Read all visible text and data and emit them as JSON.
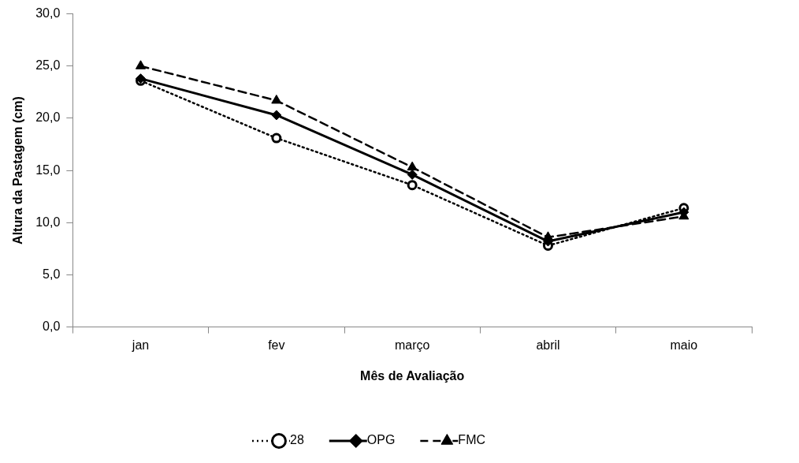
{
  "chart_data": {
    "type": "line",
    "xlabel": "Mês de Avaliação",
    "ylabel": "Altura da Pastagem (cm)",
    "categories": [
      "jan",
      "fev",
      "março",
      "abril",
      "maio"
    ],
    "series": [
      {
        "name": "28",
        "color": "#000000",
        "marker": "circle",
        "line_style": "dotted",
        "values": [
          23.6,
          18.1,
          13.6,
          7.8,
          11.4
        ]
      },
      {
        "name": "OPG",
        "color": "#000000",
        "marker": "diamond",
        "line_style": "solid",
        "values": [
          23.8,
          20.3,
          14.6,
          8.2,
          11.0
        ]
      },
      {
        "name": "FMC",
        "color": "#000000",
        "marker": "triangle",
        "line_style": "dashed",
        "values": [
          25.0,
          21.7,
          15.3,
          8.6,
          10.6
        ]
      }
    ],
    "ylim": [
      0,
      30
    ],
    "yticks": [
      {
        "value": 0,
        "label": "0,0"
      },
      {
        "value": 5,
        "label": "5,0"
      },
      {
        "value": 10,
        "label": "10,0"
      },
      {
        "value": 15,
        "label": "15,0"
      },
      {
        "value": 20,
        "label": "20,0"
      },
      {
        "value": 25,
        "label": "25,0"
      },
      {
        "value": 30,
        "label": "30,0"
      }
    ],
    "grid": false,
    "legend": "bottom"
  }
}
